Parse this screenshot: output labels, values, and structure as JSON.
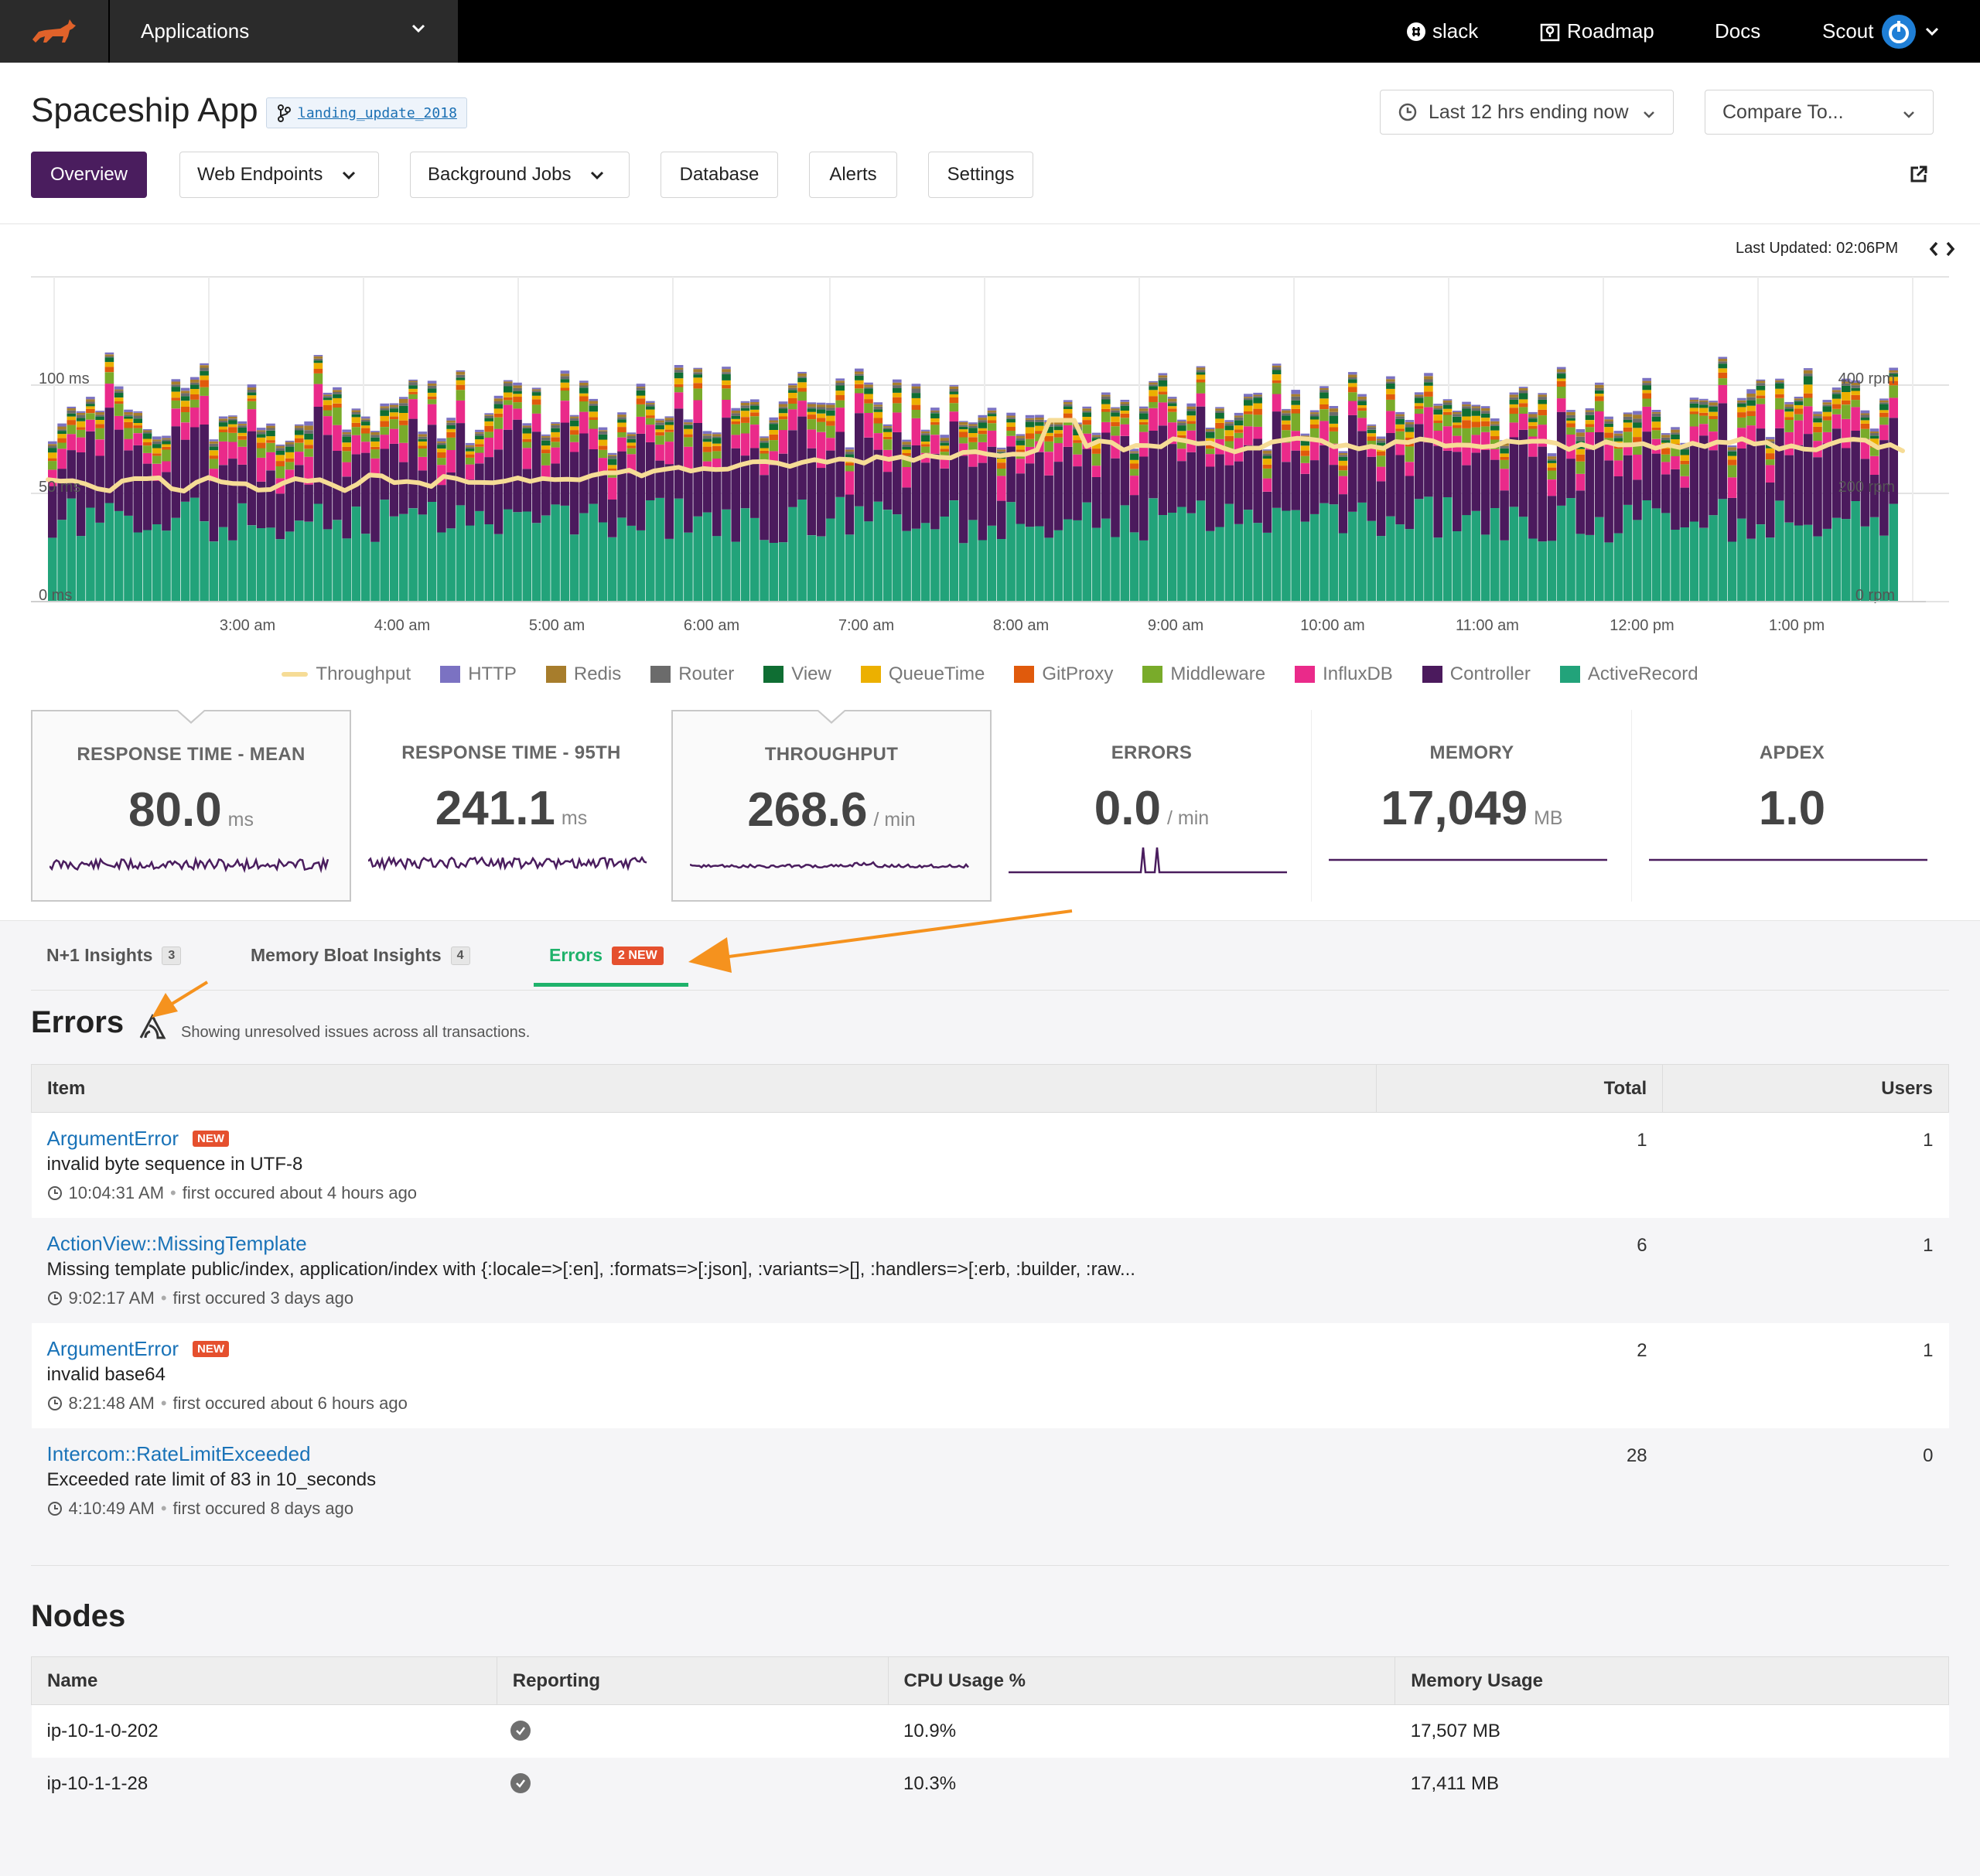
{
  "nav": {
    "applications_label": "Applications",
    "slack_label": "slack",
    "roadmap_label": "Roadmap",
    "docs_label": "Docs",
    "user_label": "Scout"
  },
  "header": {
    "app_title": "Spaceship App",
    "branch": "landing_update_2018",
    "time_range": "Last 12 hrs ending now",
    "compare": "Compare To..."
  },
  "tabs": {
    "overview": "Overview",
    "web_endpoints": "Web Endpoints",
    "background_jobs": "Background Jobs",
    "database": "Database",
    "alerts": "Alerts",
    "settings": "Settings"
  },
  "last_updated": "Last Updated: 02:06PM",
  "colors": {
    "throughput": "#f6dc96",
    "http": "#7b72c2",
    "redis": "#a77d2c",
    "router": "#6b6b6b",
    "view": "#0f6e33",
    "queuetime": "#ecb000",
    "gitproxy": "#e05a0c",
    "middleware": "#79ab2a",
    "influxdb": "#ea2a8a",
    "controller": "#4b1a5d",
    "activerecord": "#22a37a",
    "accent_purple": "#4a1d5e",
    "link_blue": "#1a73b8",
    "success_green": "#1fb26b",
    "badge_red": "#e5502e",
    "arrow_orange": "#f5921e"
  },
  "chart_data": {
    "type": "bar",
    "stacked": true,
    "y_left_label_ticks": [
      "0 ms",
      "50 ms",
      "100 ms"
    ],
    "y_right_label_ticks": [
      "0 rpm",
      "200 rpm",
      "400 rpm"
    ],
    "ylim": [
      0,
      150
    ],
    "y2lim": [
      0,
      600
    ],
    "x_tick_labels": [
      "3:00 am",
      "4:00 am",
      "5:00 am",
      "6:00 am",
      "7:00 am",
      "8:00 am",
      "9:00 am",
      "10:00 am",
      "11:00 am",
      "12:00 pm",
      "1:00 pm"
    ],
    "series_order": [
      "ActiveRecord",
      "Controller",
      "InfluxDB",
      "Middleware",
      "GitProxy",
      "QueueTime",
      "View",
      "Router",
      "Redis",
      "HTTP"
    ],
    "stack_mean_ms": [
      36,
      31,
      8,
      4,
      2,
      2,
      2,
      1,
      1,
      1
    ],
    "throughput_line_rpm": "approximately 215-235 rpm from 2:30 am to 5:00 am, rising to about 250-280 rpm by 8:00 am with spikes near 330 rpm around 8:15 am, then holding around 280-310 rpm until 1:45 pm",
    "legend": [
      "Throughput",
      "HTTP",
      "Redis",
      "Router",
      "View",
      "QueueTime",
      "GitProxy",
      "Middleware",
      "InfluxDB",
      "Controller",
      "ActiveRecord"
    ],
    "grid": true
  },
  "metrics": [
    {
      "label": "RESPONSE TIME - MEAN",
      "value": "80.0",
      "unit": "ms"
    },
    {
      "label": "RESPONSE TIME - 95TH",
      "value": "241.1",
      "unit": "ms"
    },
    {
      "label": "THROUGHPUT",
      "value": "268.6",
      "unit": "/ min"
    },
    {
      "label": "ERRORS",
      "value": "0.0",
      "unit": "/ min"
    },
    {
      "label": "MEMORY",
      "value": "17,049",
      "unit": "MB"
    },
    {
      "label": "APDEX",
      "value": "1.0",
      "unit": ""
    }
  ],
  "insights": {
    "n1_label": "N+1 Insights",
    "n1_count": "3",
    "bloat_label": "Memory Bloat Insights",
    "bloat_count": "4",
    "errors_label": "Errors",
    "errors_badge": "2 NEW"
  },
  "errors_section": {
    "title": "Errors",
    "subtitle": "Showing unresolved issues across all transactions.",
    "columns": {
      "item": "Item",
      "total": "Total",
      "users": "Users"
    },
    "new_label": "NEW",
    "rows": [
      {
        "name": "ArgumentError",
        "is_new": true,
        "message": "invalid byte sequence in UTF-8",
        "time": "10:04:31 AM",
        "first": "first occured about 4 hours ago",
        "total": "1",
        "users": "1"
      },
      {
        "name": "ActionView::MissingTemplate",
        "is_new": false,
        "message": "Missing template public/index, application/index with {:locale=>[:en], :formats=>[:json], :variants=>[], :handlers=>[:erb, :builder, :raw...",
        "time": "9:02:17 AM",
        "first": "first occured 3 days ago",
        "total": "6",
        "users": "1"
      },
      {
        "name": "ArgumentError",
        "is_new": true,
        "message": "invalid base64",
        "time": "8:21:48 AM",
        "first": "first occured about 6 hours ago",
        "total": "2",
        "users": "1"
      },
      {
        "name": "Intercom::RateLimitExceeded",
        "is_new": false,
        "message": "Exceeded rate limit of 83 in 10_seconds",
        "time": "4:10:49 AM",
        "first": "first occured 8 days ago",
        "total": "28",
        "users": "0"
      }
    ]
  },
  "nodes_section": {
    "title": "Nodes",
    "columns": {
      "name": "Name",
      "reporting": "Reporting",
      "cpu": "CPU Usage %",
      "memory": "Memory Usage"
    },
    "rows": [
      {
        "name": "ip-10-1-0-202",
        "cpu": "10.9%",
        "memory": "17,507 MB"
      },
      {
        "name": "ip-10-1-1-28",
        "cpu": "10.3%",
        "memory": "17,411 MB"
      }
    ]
  }
}
